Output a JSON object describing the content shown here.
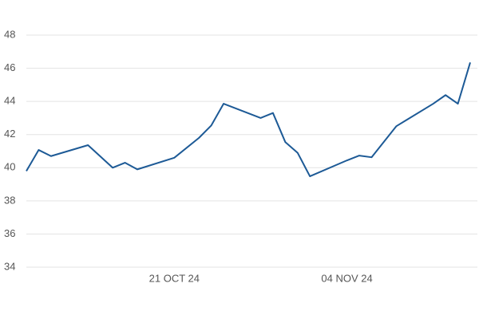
{
  "chart_data": {
    "type": "line",
    "x": [
      "2024-10-09",
      "2024-10-10",
      "2024-10-11",
      "2024-10-14",
      "2024-10-16",
      "2024-10-17",
      "2024-10-18",
      "2024-10-21",
      "2024-10-23",
      "2024-10-24",
      "2024-10-25",
      "2024-10-28",
      "2024-10-29",
      "2024-10-30",
      "2024-10-31",
      "2024-11-01",
      "2024-11-04",
      "2024-11-05",
      "2024-11-06",
      "2024-11-08",
      "2024-11-11",
      "2024-11-12",
      "2024-11-13",
      "2024-11-14"
    ],
    "series": [
      {
        "color": "#1d5a96",
        "values": [
          39.8,
          41.07,
          40.7,
          41.36,
          40.0,
          40.3,
          39.9,
          40.6,
          41.8,
          42.55,
          43.86,
          43.0,
          43.3,
          41.55,
          40.9,
          39.48,
          40.44,
          40.73,
          40.63,
          42.5,
          43.86,
          44.38,
          43.86,
          46.35
        ]
      }
    ],
    "xlim": [
      "2024-10-09",
      "2024-11-14"
    ],
    "xticks": [
      {
        "value": "2024-10-21",
        "label": "21 OCT 24"
      },
      {
        "value": "2024-11-04",
        "label": "04 NOV 24"
      }
    ],
    "ylim": [
      34,
      48
    ],
    "yticks": [
      34,
      36,
      38,
      40,
      42,
      44,
      46,
      48
    ],
    "grid": true
  }
}
